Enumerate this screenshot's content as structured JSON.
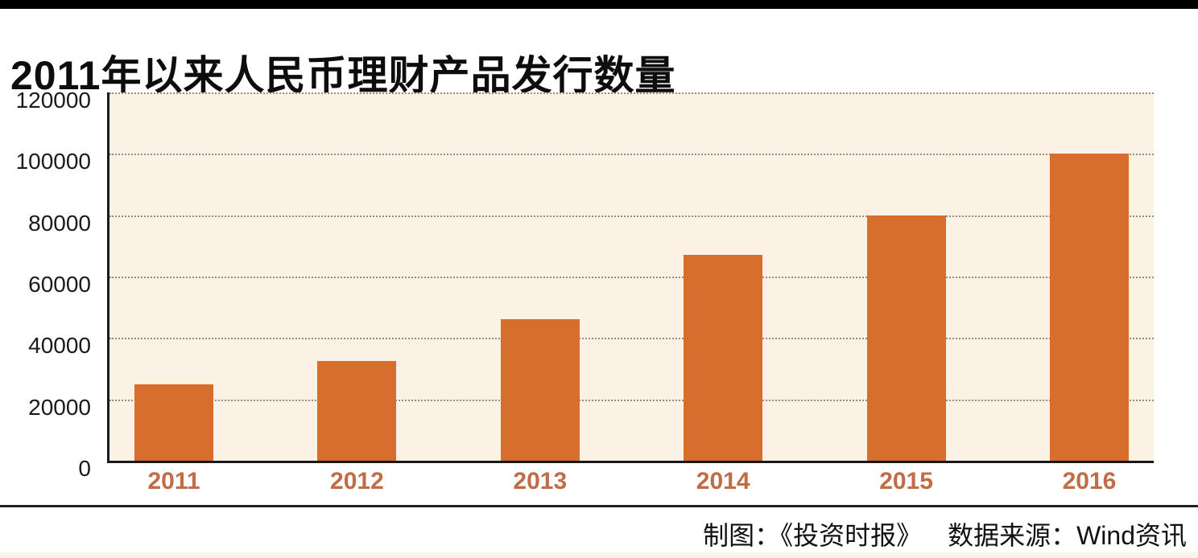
{
  "header": {
    "title": "2011年以来人民币理财产品发行数量"
  },
  "chart_data": {
    "type": "bar",
    "title": "2011年以来人民币理财产品发行数量",
    "categories": [
      "2011",
      "2012",
      "2013",
      "2014",
      "2015",
      "2016"
    ],
    "values": [
      25000,
      32500,
      46000,
      67000,
      80000,
      100000
    ],
    "xlabel": "",
    "ylabel": "",
    "ylim": [
      0,
      120000
    ],
    "yticks": [
      0,
      20000,
      40000,
      60000,
      80000,
      100000,
      120000
    ],
    "grid": "horizontal-dotted",
    "legend": "none",
    "colors": {
      "bar": "#d76e2e",
      "plot_background": "#fbf1e5",
      "x_tick_label": "#c06c46",
      "gridline": "#948d83",
      "axis": "#191919"
    }
  },
  "footer": {
    "credit_left": "制图：《投资时报》",
    "credit_right": "数据来源：Wind资讯"
  }
}
